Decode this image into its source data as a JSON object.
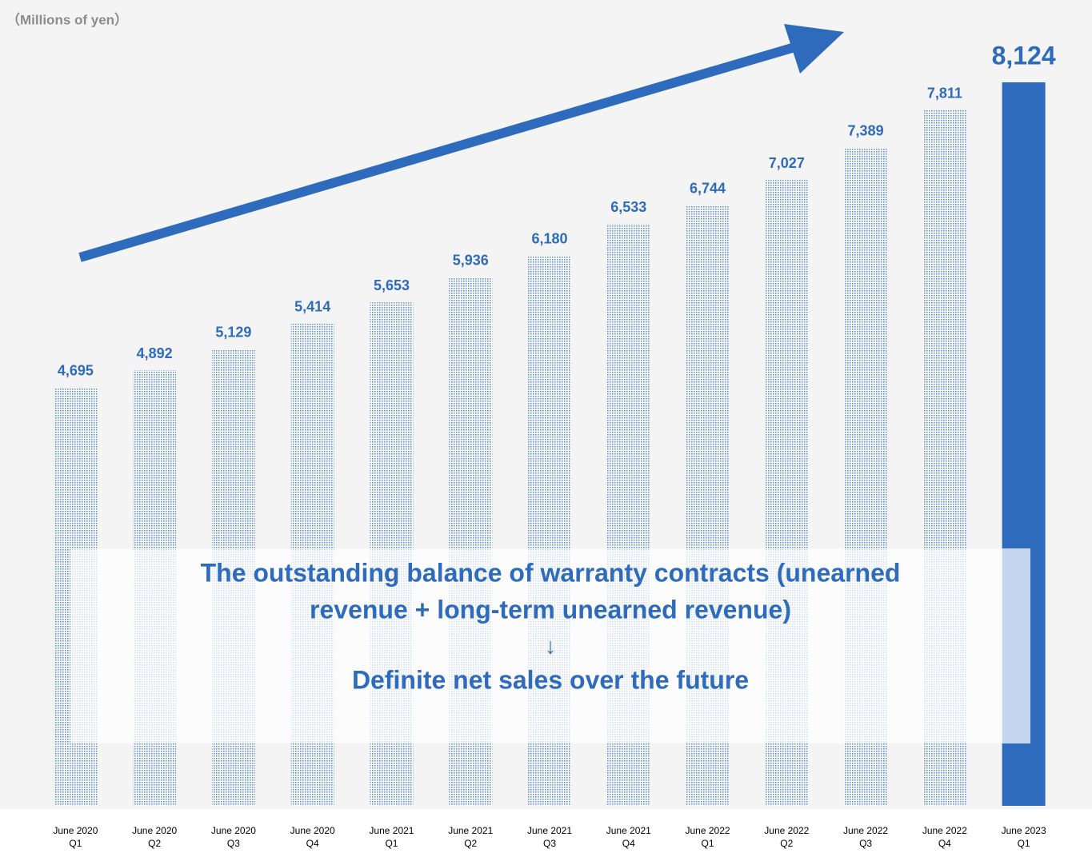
{
  "chart_data": {
    "type": "bar",
    "unit_label": "（Millions of yen）",
    "categories": [
      [
        "June 2020",
        "Q1"
      ],
      [
        "June 2020",
        "Q2"
      ],
      [
        "June 2020",
        "Q3"
      ],
      [
        "June 2020",
        "Q4"
      ],
      [
        "June 2021",
        "Q1"
      ],
      [
        "June 2021",
        "Q2"
      ],
      [
        "June 2021",
        "Q3"
      ],
      [
        "June 2021",
        "Q4"
      ],
      [
        "June 2022",
        "Q1"
      ],
      [
        "June 2022",
        "Q2"
      ],
      [
        "June 2022",
        "Q3"
      ],
      [
        "June 2022",
        "Q4"
      ],
      [
        "June 2023",
        "Q1"
      ]
    ],
    "values": [
      4695,
      4892,
      5129,
      5414,
      5653,
      5936,
      6180,
      6533,
      6744,
      7027,
      7389,
      7811,
      8124
    ],
    "value_labels": [
      "4,695",
      "4,892",
      "5,129",
      "5,414",
      "5,653",
      "5,936",
      "6,180",
      "6,533",
      "6,744",
      "7,027",
      "7,389",
      "7,811",
      "8,124"
    ],
    "color": "#2e6bbd",
    "fills": [
      "dotted",
      "dotted",
      "dotted",
      "dotted",
      "dotted",
      "dotted",
      "dotted",
      "dotted",
      "dotted",
      "dotted",
      "dotted",
      "dotted",
      "solid"
    ],
    "ylim": [
      0,
      9000
    ],
    "annotation": [
      "The outstanding balance of warranty contracts (unearned",
      "revenue + long-term unearned revenue)",
      "↓",
      "Definite net sales over the future"
    ]
  }
}
